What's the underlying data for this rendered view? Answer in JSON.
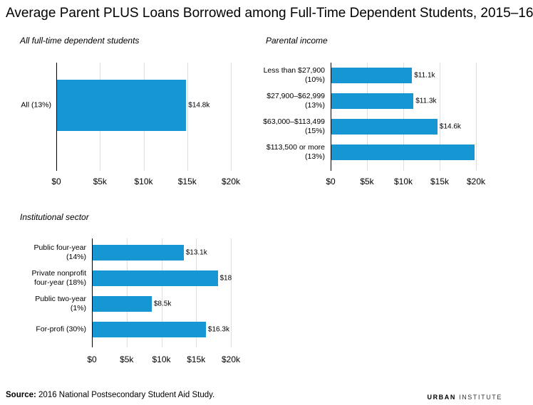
{
  "title": "Average Parent PLUS Loans Borrowed among Full-Time Dependent Students, 2015–16",
  "chart_data": [
    {
      "type": "hbar",
      "title": "All full-time dependent students",
      "categories": [
        "All (13%)"
      ],
      "values": [
        14.8
      ],
      "value_labels": [
        "$14.8k"
      ],
      "color": "#1696d2",
      "xlim": [
        0,
        20
      ],
      "xticks": [
        {
          "value": 0,
          "label": "$0"
        },
        {
          "value": 5,
          "label": "$5k"
        },
        {
          "value": 10,
          "label": "$10k"
        },
        {
          "value": 15,
          "label": "$15k"
        },
        {
          "value": 20,
          "label": "$20k"
        }
      ],
      "grid": true
    },
    {
      "type": "hbar",
      "title": "Parental income",
      "categories": [
        "Less than $27,900\n(10%)",
        "$27,900–$62,999\n(13%)",
        "$63,000–$113,499\n(15%)",
        "$113,500 or more\n(13%)"
      ],
      "values": [
        11.1,
        11.3,
        14.6,
        19.7
      ],
      "value_labels": [
        "$11.1k",
        "$11.3k",
        "$14.6k",
        null
      ],
      "color": "#1696d2",
      "xlim": [
        0,
        20
      ],
      "xticks": [
        {
          "value": 0,
          "label": "$0"
        },
        {
          "value": 5,
          "label": "$5k"
        },
        {
          "value": 10,
          "label": "$10k"
        },
        {
          "value": 15,
          "label": "$15k"
        },
        {
          "value": 20,
          "label": "$20k"
        }
      ],
      "grid": true
    },
    {
      "type": "hbar",
      "title": "Institutional sector",
      "categories": [
        "Public four-year\n(14%)",
        "Private nonprofit\nfour-year (18%)",
        "Public two-year\n(1%)",
        "For-profi (30%)"
      ],
      "values": [
        13.1,
        18.0,
        8.5,
        16.3
      ],
      "value_labels": [
        "$13.1k",
        "$18",
        "$8.5k",
        "$16.3k"
      ],
      "color": "#1696d2",
      "xlim": [
        0,
        20
      ],
      "xticks": [
        {
          "value": 0,
          "label": "$0"
        },
        {
          "value": 5,
          "label": "$5k"
        },
        {
          "value": 10,
          "label": "$10k"
        },
        {
          "value": 15,
          "label": "$15k"
        },
        {
          "value": 20,
          "label": "$20k"
        }
      ],
      "grid": true
    }
  ],
  "source": {
    "label": "Source:",
    "text": "2016 National Postsecondary Student Aid Study."
  },
  "logo": {
    "bold": "URBAN",
    "light": "INSTITUTE"
  }
}
